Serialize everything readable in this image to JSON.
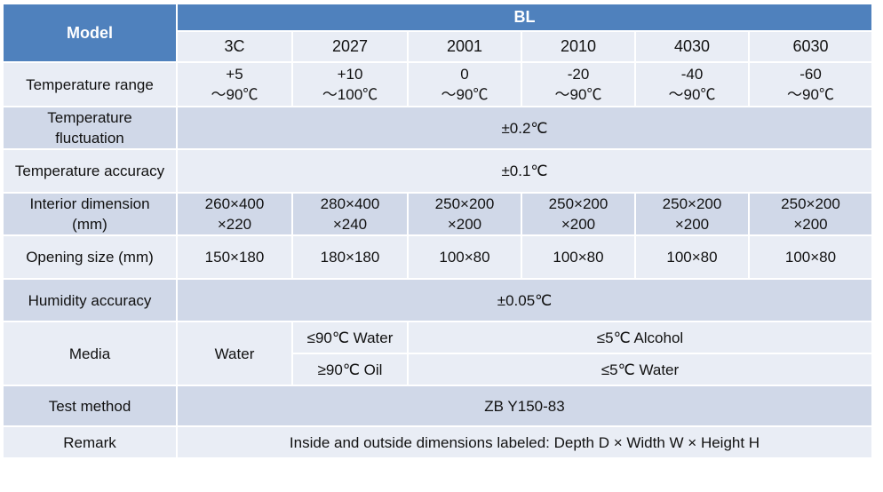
{
  "table": {
    "model_label": "Model",
    "series_label": "BL",
    "models": [
      "3C",
      "2027",
      "2001",
      "2010",
      "4030",
      "6030"
    ],
    "rows": {
      "temperature_range": {
        "label": "Temperature range",
        "values": [
          {
            "line1": "+5",
            "line2": "～90℃"
          },
          {
            "line1": "+10",
            "line2": "～100℃"
          },
          {
            "line1": "0",
            "line2": "～90℃"
          },
          {
            "line1": "-20",
            "line2": "～90℃"
          },
          {
            "line1": "-40",
            "line2": "～90℃"
          },
          {
            "line1": "-60",
            "line2": "～90℃"
          }
        ]
      },
      "temperature_fluctuation": {
        "label_line1": "Temperature",
        "label_line2": "fluctuation",
        "value": "±0.2℃"
      },
      "temperature_accuracy": {
        "label": "Temperature accuracy",
        "value": "±0.1℃"
      },
      "interior_dimension": {
        "label_line1": "Interior dimension",
        "label_line2": "(mm)",
        "values": [
          {
            "line1": "260×400",
            "line2": "×220"
          },
          {
            "line1": "280×400",
            "line2": "×240"
          },
          {
            "line1": "250×200",
            "line2": "×200"
          },
          {
            "line1": "250×200",
            "line2": "×200"
          },
          {
            "line1": "250×200",
            "line2": "×200"
          },
          {
            "line1": "250×200",
            "line2": "×200"
          }
        ]
      },
      "opening_size": {
        "label": "Opening size (mm)",
        "values": [
          "150×180",
          "180×180",
          "100×80",
          "100×80",
          "100×80",
          "100×80"
        ]
      },
      "humidity_accuracy": {
        "label": "Humidity accuracy",
        "value": "±0.05℃"
      },
      "media": {
        "label": "Media",
        "col1": "Water",
        "col2_top": "≤90℃ Water",
        "col2_bottom": "≥90℃ Oil",
        "rest_top": "≤5℃ Alcohol",
        "rest_bottom": "≤5℃ Water"
      },
      "test_method": {
        "label": "Test method",
        "value": "ZB Y150-83"
      },
      "remark": {
        "label": "Remark",
        "value": "Inside and outside dimensions labeled:  Depth D × Width W × Height H"
      }
    }
  }
}
